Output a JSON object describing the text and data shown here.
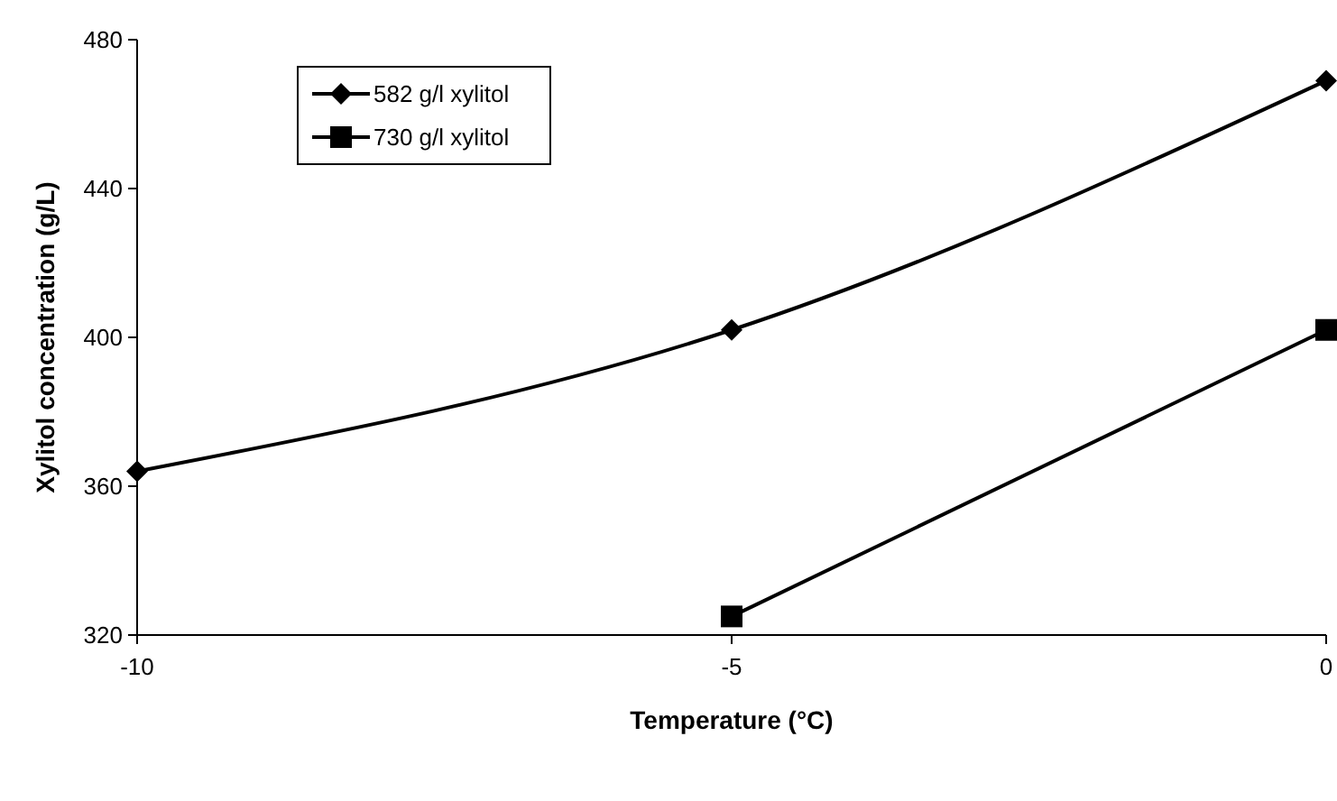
{
  "chart_data": {
    "type": "line",
    "xlabel": "Temperature (°C)",
    "ylabel": "Xylitol concentration (g/L)",
    "xlim": [
      -10,
      0
    ],
    "xticks": [
      -10,
      -5,
      0
    ],
    "ylim": [
      320,
      480
    ],
    "yticks": [
      320,
      360,
      400,
      440,
      480
    ],
    "grid": false,
    "legend": "top left",
    "line_style": "solid",
    "series": [
      {
        "name": "582 g/l xylitol",
        "color": "#000000",
        "marker": "diamond",
        "x": [
          -10,
          -5,
          0
        ],
        "values": [
          364,
          402,
          469
        ]
      },
      {
        "name": "730 g/l xylitol",
        "color": "#000000",
        "marker": "square",
        "x": [
          -5,
          0
        ],
        "values": [
          325,
          402
        ]
      }
    ]
  }
}
